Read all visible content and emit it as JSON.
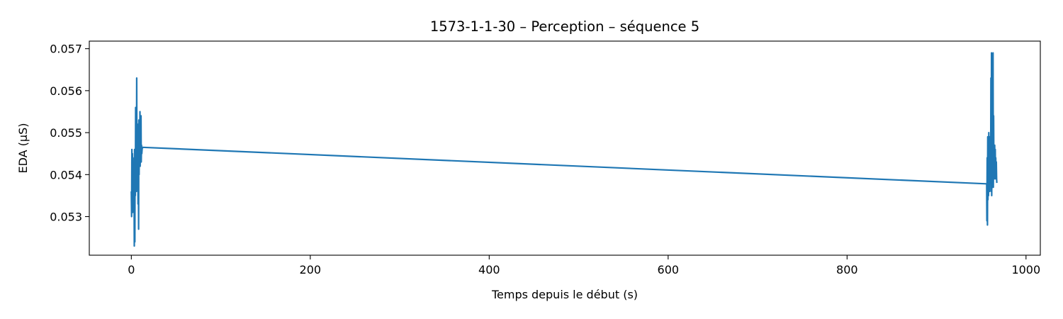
{
  "chart_data": {
    "type": "line",
    "title": "1573-1-1-30 – Perception – séquence 5",
    "xlabel": "Temps depuis le début (s)",
    "ylabel": "EDA (µS)",
    "xlim": [
      -47,
      1016
    ],
    "ylim": [
      0.05208,
      0.05718
    ],
    "xticks": [
      0,
      200,
      400,
      600,
      800,
      1000
    ],
    "yticks": [
      0.053,
      0.054,
      0.055,
      0.056,
      0.057
    ],
    "ytick_labels": [
      "0.053",
      "0.054",
      "0.055",
      "0.056",
      "0.057"
    ],
    "grid": false,
    "legend": "none",
    "series": [
      {
        "color": "#1f77b4",
        "x": [
          0.0,
          0.3,
          0.6,
          0.9,
          1.2,
          1.5,
          1.8,
          2.1,
          2.4,
          2.7,
          3.0,
          3.3,
          3.6,
          3.9,
          4.2,
          4.5,
          4.8,
          5.1,
          5.4,
          5.7,
          6.0,
          6.3,
          6.6,
          6.9,
          7.2,
          7.5,
          7.8,
          8.1,
          8.4,
          8.7,
          9.0,
          9.3,
          9.6,
          9.9,
          10.2,
          10.5,
          10.8,
          11.1,
          11.4,
          11.7,
          12.0,
          12.5,
          956.0,
          956.3,
          956.6,
          956.9,
          957.2,
          957.5,
          957.8,
          958.1,
          958.4,
          958.7,
          959.0,
          959.3,
          959.6,
          959.9,
          960.2,
          960.5,
          960.8,
          961.1,
          961.4,
          961.7,
          962.0,
          962.3,
          962.6,
          962.9,
          963.2,
          963.5,
          963.8,
          964.1,
          964.4,
          964.7,
          965.0,
          965.3,
          965.6,
          965.9,
          966.2,
          966.5,
          966.8,
          967.1,
          967.4
        ],
        "y": [
          0.0536,
          0.053,
          0.0546,
          0.0533,
          0.0545,
          0.0531,
          0.0544,
          0.0535,
          0.0543,
          0.0534,
          0.0541,
          0.0523,
          0.0546,
          0.0524,
          0.0543,
          0.0535,
          0.0556,
          0.054,
          0.0551,
          0.0536,
          0.0563,
          0.0538,
          0.0548,
          0.0539,
          0.0552,
          0.0533,
          0.0545,
          0.0527,
          0.0553,
          0.054,
          0.0552,
          0.0544,
          0.0555,
          0.0542,
          0.0547,
          0.0545,
          0.0554,
          0.0543,
          0.0547,
          0.0545,
          0.0546,
          0.05465,
          0.05378,
          0.0529,
          0.0544,
          0.0528,
          0.0549,
          0.0534,
          0.0548,
          0.0535,
          0.055,
          0.0538,
          0.0547,
          0.0536,
          0.0549,
          0.054,
          0.0547,
          0.0538,
          0.0563,
          0.0536,
          0.0569,
          0.0535,
          0.0548,
          0.0537,
          0.055,
          0.0539,
          0.0569,
          0.0537,
          0.0554,
          0.054,
          0.0545,
          0.0539,
          0.0547,
          0.0541,
          0.0546,
          0.0539,
          0.0544,
          0.054,
          0.0543,
          0.0539,
          0.0538
        ]
      }
    ]
  }
}
